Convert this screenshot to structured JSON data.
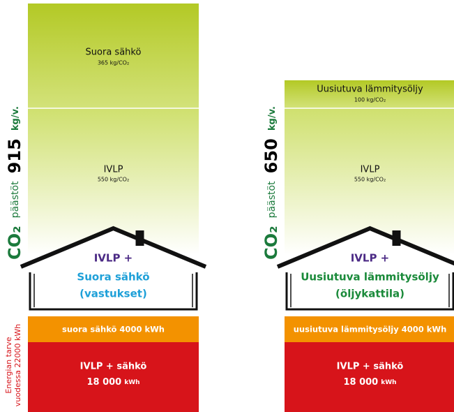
{
  "columns": [
    {
      "top": {
        "label": "Suora sähkö",
        "amount": "365 kg/CO₂"
      },
      "ivlp": {
        "label": "IVLP",
        "amount": "550 kg/CO₂"
      },
      "house": {
        "line1": "IVLP +",
        "line2": "Suora sähkö",
        "line3": "(vastukset)"
      },
      "orange": "suora sähkö  4000 kWh",
      "red": {
        "line1": "IVLP + sähkö",
        "value": "18 000",
        "unit": "kWh"
      },
      "co2": {
        "prefix": "CO₂",
        "label": "päästöt",
        "value": "915",
        "unit": "kg/v."
      }
    },
    {
      "top": {
        "label": "Uusiutuva lämmitysöljy",
        "amount": "100 kg/CO₂"
      },
      "ivlp": {
        "label": "IVLP",
        "amount": "550 kg/CO₂"
      },
      "house": {
        "line1": "IVLP +",
        "line2": "Uusiutuva lämmitysöljy",
        "line3": "(öljykattila)"
      },
      "orange": "uusiutuva lämmitysöljy 4000 kWh",
      "red": {
        "line1": "IVLP + sähkö",
        "value": "18 000",
        "unit": "kWh"
      },
      "co2": {
        "prefix": "CO₂",
        "label": "päästöt",
        "value": "650",
        "unit": "kg/v."
      }
    }
  ],
  "energy_label": [
    "Energian tarve",
    "vuodessa 22000 kWh"
  ]
}
